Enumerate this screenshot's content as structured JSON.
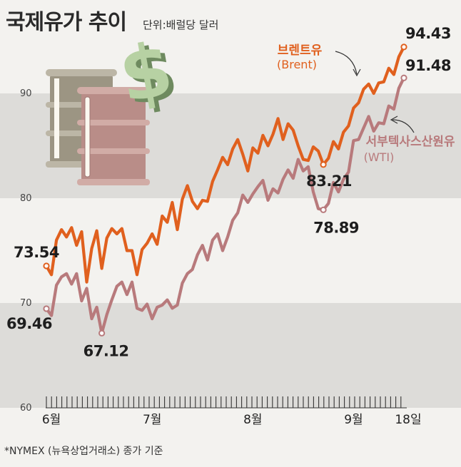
{
  "title": "국제유가 추이",
  "unit": "단위:배럴당 달러",
  "footnote": "*NYMEX (뉴욕상업거래소) 종가 기준",
  "chart_data": {
    "type": "line",
    "ylim": [
      60,
      96
    ],
    "yticks": [
      "60",
      "70",
      "80",
      "90"
    ],
    "bands": [
      [
        60,
        70
      ],
      [
        80,
        90
      ]
    ],
    "xticks": [
      "6월",
      "7월",
      "8월",
      "9월",
      "18일"
    ],
    "series": [
      {
        "name": "브렌트유",
        "name_sub": "(Brent)",
        "color": "#e0601e",
        "values": [
          73.54,
          72.7,
          76.0,
          77.0,
          76.3,
          77.2,
          75.5,
          76.8,
          72.0,
          75.2,
          76.9,
          73.3,
          76.2,
          77.1,
          76.6,
          77.1,
          75.0,
          75.0,
          72.7,
          75.1,
          75.7,
          76.6,
          75.6,
          78.3,
          77.7,
          79.6,
          77.0,
          79.9,
          81.2,
          79.7,
          79.0,
          79.8,
          79.7,
          81.6,
          82.7,
          83.9,
          83.2,
          84.7,
          85.6,
          84.2,
          82.6,
          84.8,
          84.3,
          86.0,
          85.0,
          86.1,
          87.6,
          85.6,
          87.1,
          86.5,
          85.0,
          83.7,
          83.6,
          84.9,
          84.5,
          83.21,
          83.8,
          85.4,
          84.7,
          86.3,
          86.9,
          88.6,
          89.1,
          90.4,
          90.9,
          90.0,
          91.0,
          91.1,
          92.4,
          91.8,
          93.5,
          94.43
        ],
        "labels": [
          {
            "i": 0,
            "text": "73.54"
          },
          {
            "i": 55,
            "text": "83.21"
          },
          {
            "i": 71,
            "text": "94.43"
          }
        ]
      },
      {
        "name": "서부텍사스산원유",
        "name_sub": "(WTI)",
        "color": "#b87a7c",
        "values": [
          69.46,
          68.8,
          71.7,
          72.5,
          72.8,
          71.8,
          72.8,
          70.2,
          71.4,
          68.5,
          69.6,
          67.12,
          68.9,
          70.3,
          71.6,
          72.0,
          70.8,
          72.0,
          69.5,
          69.3,
          69.9,
          68.5,
          69.6,
          69.8,
          70.3,
          69.5,
          69.8,
          71.9,
          72.8,
          73.2,
          74.6,
          75.5,
          74.1,
          76.0,
          76.6,
          75.0,
          76.3,
          77.9,
          78.6,
          80.3,
          79.6,
          80.4,
          81.1,
          81.7,
          79.8,
          80.9,
          80.5,
          81.8,
          82.7,
          81.9,
          83.7,
          82.6,
          83.0,
          80.6,
          79.0,
          78.89,
          79.5,
          81.5,
          80.6,
          81.8,
          82.5,
          85.5,
          85.6,
          86.7,
          87.8,
          86.4,
          87.2,
          87.1,
          88.8,
          88.5,
          90.5,
          91.48
        ],
        "labels": [
          {
            "i": 0,
            "text": "69.46"
          },
          {
            "i": 11,
            "text": "67.12"
          },
          {
            "i": 55,
            "text": "78.89"
          },
          {
            "i": 71,
            "text": "91.48"
          }
        ]
      }
    ]
  }
}
